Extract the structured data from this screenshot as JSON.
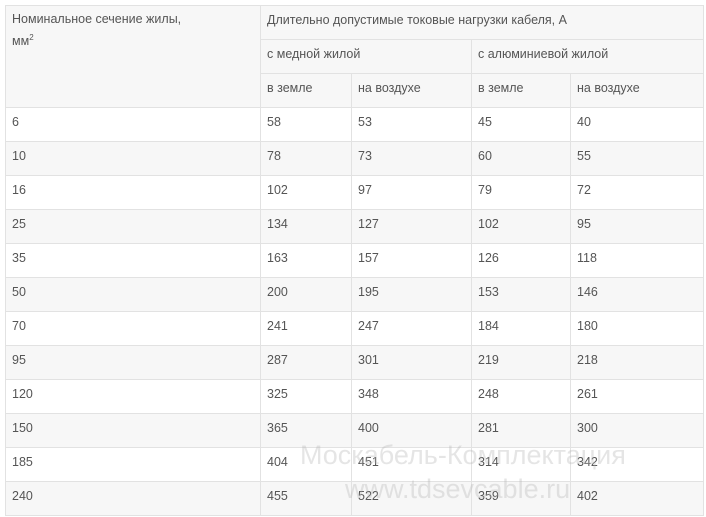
{
  "header": {
    "section_label": "Номинальное сечение жилы,",
    "section_unit": "мм",
    "section_unit_sup": "2",
    "load_title": "Длительно допустимые токовые нагрузки кабеля, А",
    "groups": [
      "с медной жилой",
      "с алюминиевой жилой"
    ],
    "subcols": [
      "в земле",
      "на воздухе",
      "в земле",
      "на воздухе"
    ]
  },
  "rows": [
    [
      "6",
      "58",
      "53",
      "45",
      "40"
    ],
    [
      "10",
      "78",
      "73",
      "60",
      "55"
    ],
    [
      "16",
      "102",
      "97",
      "79",
      "72"
    ],
    [
      "25",
      "134",
      "127",
      "102",
      "95"
    ],
    [
      "35",
      "163",
      "157",
      "126",
      "118"
    ],
    [
      "50",
      "200",
      "195",
      "153",
      "146"
    ],
    [
      "70",
      "241",
      "247",
      "184",
      "180"
    ],
    [
      "95",
      "287",
      "301",
      "219",
      "218"
    ],
    [
      "120",
      "325",
      "348",
      "248",
      "261"
    ],
    [
      "150",
      "365",
      "400",
      "281",
      "300"
    ],
    [
      "185",
      "404",
      "451",
      "314",
      "342"
    ],
    [
      "240",
      "455",
      "522",
      "359",
      "402"
    ]
  ],
  "watermark": {
    "line1": "Москабель-Комплектация",
    "line2": "www.tdsevcable.ru"
  }
}
